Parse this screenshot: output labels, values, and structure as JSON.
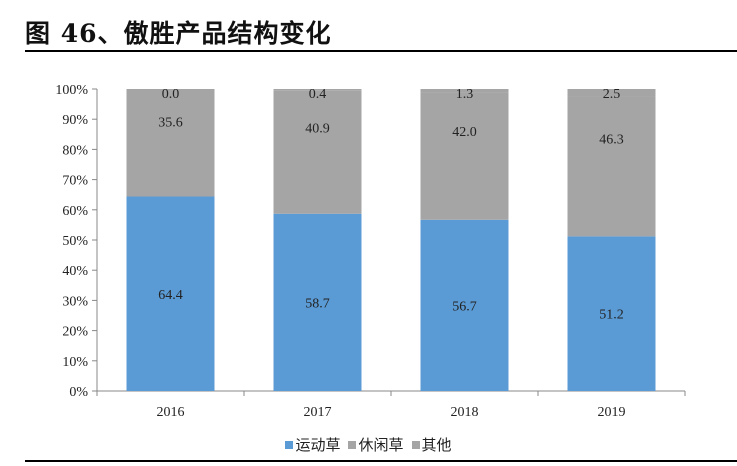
{
  "title": "图 46、傲胜产品结构变化",
  "chart_data": {
    "type": "bar",
    "stacked": true,
    "categories": [
      "2016",
      "2017",
      "2018",
      "2019"
    ],
    "series": [
      {
        "name": "运动草",
        "values": [
          64.4,
          58.7,
          56.7,
          51.2
        ],
        "color": "#5b9bd5"
      },
      {
        "name": "休闲草",
        "values": [
          35.6,
          40.9,
          42.0,
          46.3
        ],
        "color": "#a5a5a5"
      },
      {
        "name": "其他",
        "values": [
          0.0,
          0.4,
          1.3,
          2.5
        ],
        "color": "#a5a5a5"
      }
    ],
    "yticks": [
      "0%",
      "10%",
      "20%",
      "30%",
      "40%",
      "50%",
      "60%",
      "70%",
      "80%",
      "90%",
      "100%"
    ],
    "ylim": [
      0,
      100
    ],
    "grid": false,
    "legend": "bottom"
  }
}
